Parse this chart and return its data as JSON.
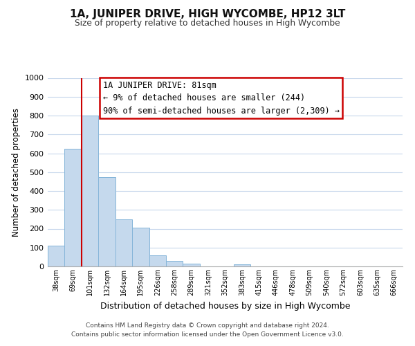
{
  "title": "1A, JUNIPER DRIVE, HIGH WYCOMBE, HP12 3LT",
  "subtitle": "Size of property relative to detached houses in High Wycombe",
  "xlabel": "Distribution of detached houses by size in High Wycombe",
  "ylabel": "Number of detached properties",
  "bar_labels": [
    "38sqm",
    "69sqm",
    "101sqm",
    "132sqm",
    "164sqm",
    "195sqm",
    "226sqm",
    "258sqm",
    "289sqm",
    "321sqm",
    "352sqm",
    "383sqm",
    "415sqm",
    "446sqm",
    "478sqm",
    "509sqm",
    "540sqm",
    "572sqm",
    "603sqm",
    "635sqm",
    "666sqm"
  ],
  "bar_values": [
    110,
    625,
    800,
    475,
    250,
    205,
    60,
    30,
    15,
    0,
    0,
    10,
    0,
    0,
    0,
    0,
    0,
    0,
    0,
    0,
    0
  ],
  "bar_color": "#c5d9ed",
  "bar_edge_color": "#85b5d9",
  "vline_x_idx": 1,
  "vline_color": "#cc0000",
  "ylim": [
    0,
    1000
  ],
  "yticks": [
    0,
    100,
    200,
    300,
    400,
    500,
    600,
    700,
    800,
    900,
    1000
  ],
  "annotation_title": "1A JUNIPER DRIVE: 81sqm",
  "annotation_line1": "← 9% of detached houses are smaller (244)",
  "annotation_line2": "90% of semi-detached houses are larger (2,309) →",
  "annotation_box_color": "#ffffff",
  "annotation_box_edge": "#cc0000",
  "footer_line1": "Contains HM Land Registry data © Crown copyright and database right 2024.",
  "footer_line2": "Contains public sector information licensed under the Open Government Licence v3.0.",
  "background_color": "#ffffff",
  "grid_color": "#c8d8ec"
}
